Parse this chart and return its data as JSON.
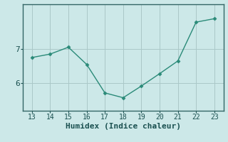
{
  "x": [
    13,
    14,
    15,
    16,
    17,
    18,
    19,
    20,
    21,
    22,
    23
  ],
  "y": [
    6.75,
    6.85,
    7.05,
    6.55,
    5.72,
    5.58,
    5.92,
    6.28,
    6.65,
    7.78,
    7.88
  ],
  "line_color": "#2a8a78",
  "marker": "D",
  "marker_size": 2.5,
  "bg_color": "#cce8e8",
  "grid_color": "#aac8c8",
  "xlabel": "Humidex (Indice chaleur)",
  "yticks": [
    6,
    7
  ],
  "xticks": [
    13,
    14,
    15,
    16,
    17,
    18,
    19,
    20,
    21,
    22,
    23
  ],
  "xlim": [
    12.5,
    23.5
  ],
  "ylim": [
    5.2,
    8.3
  ],
  "axis_color": "#336666",
  "font_color": "#1a5050",
  "tick_fontsize": 7,
  "xlabel_fontsize": 8
}
